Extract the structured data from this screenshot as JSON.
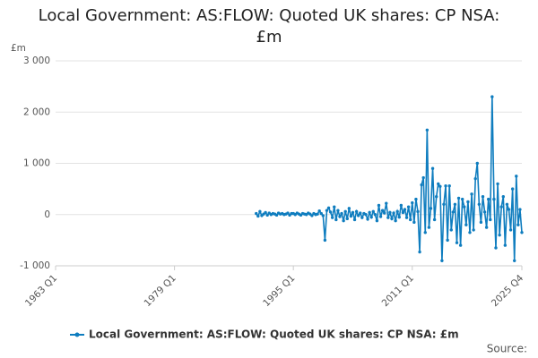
{
  "chart_data": {
    "type": "line",
    "title": "Local Government: AS:FLOW: Quoted UK shares: CP NSA: £m",
    "y_unit": "£m",
    "source": "Source:",
    "xlim": [
      1963,
      2025.75
    ],
    "xticks": [
      {
        "value": 1963,
        "label": "1963 Q1"
      },
      {
        "value": 1979,
        "label": "1979 Q1"
      },
      {
        "value": 1995,
        "label": "1995 Q1"
      },
      {
        "value": 2011,
        "label": "2011 Q1"
      },
      {
        "value": 2025.75,
        "label": "2025 Q4"
      }
    ],
    "ylim": [
      -1000,
      3000
    ],
    "yticks": [
      {
        "value": -1000,
        "label": "-1 000"
      },
      0,
      {
        "value": 1000,
        "label": "1 000"
      },
      {
        "value": 2000,
        "label": "2 000"
      },
      {
        "value": 3000,
        "label": "3 000"
      }
    ],
    "grid": true,
    "legend": "bottom",
    "x": [
      1990,
      1990.25,
      1990.5,
      1990.75,
      1991,
      1991.25,
      1991.5,
      1991.75,
      1992,
      1992.25,
      1992.5,
      1992.75,
      1993,
      1993.25,
      1993.5,
      1993.75,
      1994,
      1994.25,
      1994.5,
      1994.75,
      1995,
      1995.25,
      1995.5,
      1995.75,
      1996,
      1996.25,
      1996.5,
      1996.75,
      1997,
      1997.25,
      1997.5,
      1997.75,
      1998,
      1998.25,
      1998.5,
      1998.75,
      1999,
      1999.25,
      1999.5,
      1999.75,
      2000,
      2000.25,
      2000.5,
      2000.75,
      2001,
      2001.25,
      2001.5,
      2001.75,
      2002,
      2002.25,
      2002.5,
      2002.75,
      2003,
      2003.25,
      2003.5,
      2003.75,
      2004,
      2004.25,
      2004.5,
      2004.75,
      2005,
      2005.25,
      2005.5,
      2005.75,
      2006,
      2006.25,
      2006.5,
      2006.75,
      2007,
      2007.25,
      2007.5,
      2007.75,
      2008,
      2008.25,
      2008.5,
      2008.75,
      2009,
      2009.25,
      2009.5,
      2009.75,
      2010,
      2010.25,
      2010.5,
      2010.75,
      2011,
      2011.25,
      2011.5,
      2011.75,
      2012,
      2012.25,
      2012.5,
      2012.75,
      2013,
      2013.25,
      2013.5,
      2013.75,
      2014,
      2014.25,
      2014.5,
      2014.75,
      2015,
      2015.25,
      2015.5,
      2015.75,
      2016,
      2016.25,
      2016.5,
      2016.75,
      2017,
      2017.25,
      2017.5,
      2017.75,
      2018,
      2018.25,
      2018.5,
      2018.75,
      2019,
      2019.25,
      2019.5,
      2019.75,
      2020,
      2020.25,
      2020.5,
      2020.75,
      2021,
      2021.25,
      2021.5,
      2021.75,
      2022,
      2022.25,
      2022.5,
      2022.75,
      2023,
      2023.25,
      2023.5,
      2023.75,
      2024,
      2024.25,
      2024.5,
      2024.75,
      2025,
      2025.25,
      2025.5,
      2025.75
    ],
    "series": [
      {
        "name": "Local Government: AS:FLOW: Quoted UK shares: CP NSA: £m",
        "color": "#0f7dbf",
        "values": [
          20,
          -30,
          60,
          -20,
          10,
          40,
          -10,
          30,
          0,
          20,
          10,
          -10,
          30,
          10,
          20,
          0,
          10,
          30,
          -10,
          20,
          20,
          0,
          30,
          10,
          -10,
          20,
          10,
          0,
          30,
          10,
          -20,
          20,
          0,
          10,
          70,
          20,
          -20,
          -500,
          80,
          130,
          50,
          -60,
          150,
          -100,
          80,
          -40,
          20,
          -120,
          60,
          -80,
          120,
          -30,
          40,
          -100,
          60,
          -20,
          30,
          -60,
          20,
          0,
          -90,
          40,
          -50,
          60,
          0,
          -120,
          180,
          -40,
          80,
          30,
          220,
          -60,
          40,
          -80,
          30,
          -120,
          60,
          -50,
          180,
          40,
          100,
          -60,
          150,
          -100,
          230,
          -150,
          300,
          60,
          -730,
          580,
          720,
          -350,
          1650,
          -250,
          120,
          900,
          -100,
          350,
          600,
          550,
          -900,
          200,
          560,
          -500,
          560,
          -300,
          50,
          200,
          -550,
          320,
          -600,
          300,
          150,
          -200,
          250,
          -350,
          400,
          -300,
          700,
          1000,
          200,
          -150,
          350,
          50,
          -250,
          300,
          -100,
          2300,
          300,
          -650,
          600,
          -400,
          150,
          350,
          -600,
          200,
          100,
          -300,
          500,
          -900,
          750,
          -200,
          100,
          -350
        ]
      }
    ]
  }
}
